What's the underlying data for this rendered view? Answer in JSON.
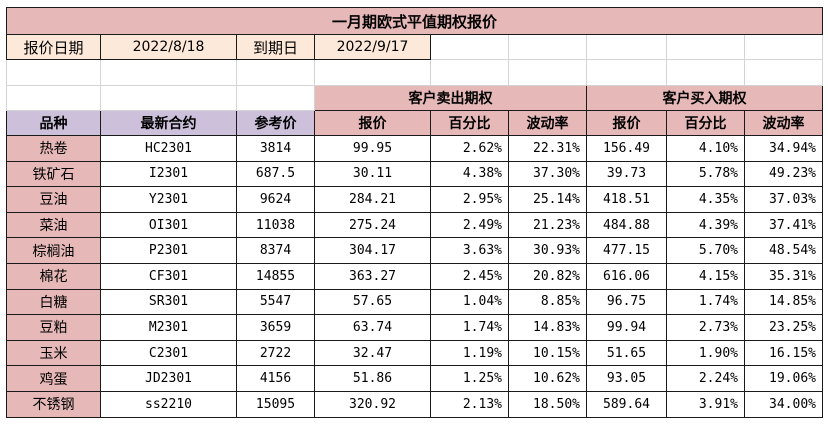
{
  "title": "一月期欧式平值期权报价",
  "quote_date_label": "报价日期",
  "quote_date": "2022/8/18",
  "expiry_label": "到期日",
  "expiry_date": "2022/9/17",
  "group_sell": "客户卖出期权",
  "group_buy": "客户买入期权",
  "headers": {
    "product": "品种",
    "contract": "最新合约",
    "ref_price": "参考价",
    "price": "报价",
    "percent": "百分比",
    "vol": "波动率"
  },
  "rows": [
    {
      "product": "热卷",
      "contract": "HC2301",
      "ref": "3814",
      "s_price": "99.95",
      "s_pct": "2.62%",
      "s_vol": "22.31%",
      "b_price": "156.49",
      "b_pct": "4.10%",
      "b_vol": "34.94%"
    },
    {
      "product": "铁矿石",
      "contract": "I2301",
      "ref": "687.5",
      "s_price": "30.11",
      "s_pct": "4.38%",
      "s_vol": "37.30%",
      "b_price": "39.73",
      "b_pct": "5.78%",
      "b_vol": "49.23%"
    },
    {
      "product": "豆油",
      "contract": "Y2301",
      "ref": "9624",
      "s_price": "284.21",
      "s_pct": "2.95%",
      "s_vol": "25.14%",
      "b_price": "418.51",
      "b_pct": "4.35%",
      "b_vol": "37.03%"
    },
    {
      "product": "菜油",
      "contract": "OI301",
      "ref": "11038",
      "s_price": "275.24",
      "s_pct": "2.49%",
      "s_vol": "21.23%",
      "b_price": "484.88",
      "b_pct": "4.39%",
      "b_vol": "37.41%"
    },
    {
      "product": "棕榈油",
      "contract": "P2301",
      "ref": "8374",
      "s_price": "304.17",
      "s_pct": "3.63%",
      "s_vol": "30.93%",
      "b_price": "477.15",
      "b_pct": "5.70%",
      "b_vol": "48.54%"
    },
    {
      "product": "棉花",
      "contract": "CF301",
      "ref": "14855",
      "s_price": "363.27",
      "s_pct": "2.45%",
      "s_vol": "20.82%",
      "b_price": "616.06",
      "b_pct": "4.15%",
      "b_vol": "35.31%"
    },
    {
      "product": "白糖",
      "contract": "SR301",
      "ref": "5547",
      "s_price": "57.65",
      "s_pct": "1.04%",
      "s_vol": "8.85%",
      "b_price": "96.75",
      "b_pct": "1.74%",
      "b_vol": "14.85%"
    },
    {
      "product": "豆粕",
      "contract": "M2301",
      "ref": "3659",
      "s_price": "63.74",
      "s_pct": "1.74%",
      "s_vol": "14.83%",
      "b_price": "99.94",
      "b_pct": "2.73%",
      "b_vol": "23.25%"
    },
    {
      "product": "玉米",
      "contract": "C2301",
      "ref": "2722",
      "s_price": "32.47",
      "s_pct": "1.19%",
      "s_vol": "10.15%",
      "b_price": "51.65",
      "b_pct": "1.90%",
      "b_vol": "16.15%"
    },
    {
      "product": "鸡蛋",
      "contract": "JD2301",
      "ref": "4156",
      "s_price": "51.86",
      "s_pct": "1.25%",
      "s_vol": "10.62%",
      "b_price": "93.05",
      "b_pct": "2.24%",
      "b_vol": "19.06%"
    },
    {
      "product": "不锈钢",
      "contract": "ss2210",
      "ref": "15095",
      "s_price": "320.92",
      "s_pct": "2.13%",
      "s_vol": "18.50%",
      "b_price": "589.64",
      "b_pct": "3.91%",
      "b_vol": "34.00%"
    }
  ]
}
